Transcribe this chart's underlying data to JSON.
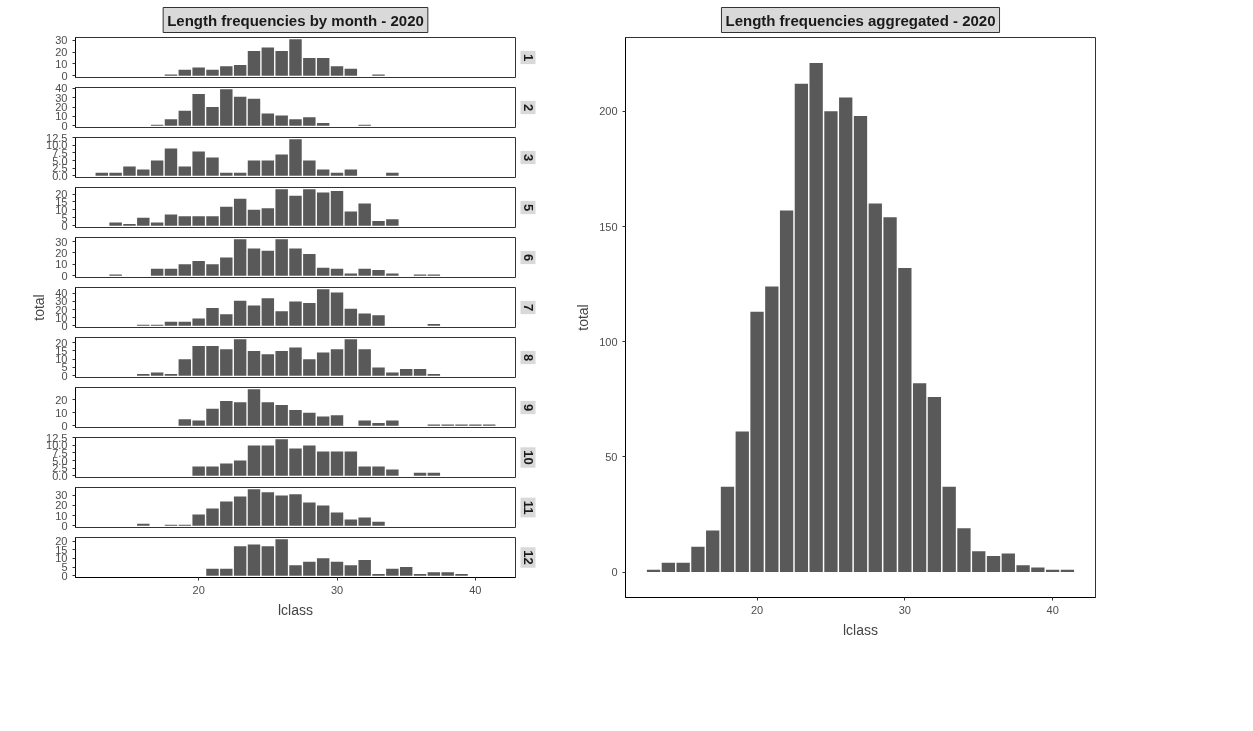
{
  "chart_data": [
    {
      "type": "bar",
      "annotations": [
        "Length frequencies by month - 2020"
      ],
      "title": "1",
      "color": "#595959",
      "tick_labels": "y",
      "xlim": [
        11.1,
        42.9
      ],
      "ylim": [
        -1.55,
        32.55
      ],
      "yticks": [
        0,
        10,
        20,
        30
      ],
      "x": [
        18,
        19,
        20,
        21,
        22,
        23,
        24,
        25,
        26,
        27,
        28,
        29,
        30,
        31,
        33
      ],
      "values": [
        1,
        5,
        7,
        5,
        8,
        9,
        21,
        24,
        21,
        31,
        15,
        15,
        8,
        6,
        1
      ]
    },
    {
      "type": "bar",
      "title": "2",
      "color": "#595959",
      "tick_labels": "y",
      "xlim": [
        11.1,
        42.9
      ],
      "ylim": [
        -1.95,
        40.95
      ],
      "yticks": [
        0,
        10,
        20,
        30,
        40
      ],
      "x": [
        17,
        18,
        19,
        20,
        21,
        22,
        23,
        24,
        25,
        26,
        27,
        28,
        29,
        32
      ],
      "values": [
        1,
        7,
        16,
        34,
        20,
        39,
        31,
        29,
        13,
        11,
        7,
        9,
        3,
        1
      ]
    },
    {
      "type": "bar",
      "title": "3",
      "color": "#595959",
      "tick_labels": "y",
      "xlim": [
        11.1,
        42.9
      ],
      "ylim": [
        -0.6,
        12.6
      ],
      "yticks": [
        {
          "value": 0,
          "label": "0.0"
        },
        2.5,
        {
          "value": 5,
          "label": "5.0"
        },
        7.5,
        {
          "value": 10,
          "label": "10.0"
        },
        12.5
      ],
      "x": [
        13,
        14,
        15,
        16,
        17,
        18,
        19,
        20,
        21,
        22,
        23,
        24,
        25,
        26,
        27,
        28,
        29,
        30,
        31,
        34
      ],
      "values": [
        1,
        1,
        3,
        2,
        5,
        9,
        3,
        8,
        6,
        1,
        1,
        5,
        5,
        7,
        12,
        5,
        2,
        1,
        2,
        1
      ]
    },
    {
      "type": "bar",
      "title": "5",
      "color": "#595959",
      "tick_labels": "y",
      "xlim": [
        11.1,
        42.9
      ],
      "ylim": [
        -1.15,
        24.15
      ],
      "yticks": [
        0,
        5,
        10,
        15,
        20
      ],
      "x": [
        14,
        15,
        16,
        17,
        18,
        19,
        20,
        21,
        22,
        23,
        24,
        25,
        26,
        27,
        28,
        29,
        30,
        31,
        32,
        33,
        34
      ],
      "values": [
        2,
        1,
        5,
        2,
        7,
        6,
        6,
        6,
        12,
        17,
        10,
        11,
        23,
        19,
        23,
        21,
        22,
        9,
        14,
        3,
        4
      ]
    },
    {
      "type": "bar",
      "title": "6",
      "color": "#595959",
      "tick_labels": "y",
      "xlim": [
        11.1,
        42.9
      ],
      "ylim": [
        -1.6,
        33.6
      ],
      "yticks": [
        0,
        10,
        20,
        30
      ],
      "x": [
        14,
        17,
        18,
        19,
        20,
        21,
        22,
        23,
        24,
        25,
        26,
        27,
        28,
        29,
        30,
        31,
        32,
        33,
        34,
        36,
        37
      ],
      "values": [
        1,
        6,
        6,
        10,
        13,
        10,
        16,
        32,
        24,
        22,
        32,
        24,
        19,
        7,
        6,
        2,
        6,
        5,
        2,
        1,
        1
      ]
    },
    {
      "type": "bar",
      "title": "7",
      "ylabel": "total",
      "color": "#595959",
      "tick_labels": "y",
      "xlim": [
        11.1,
        42.9
      ],
      "ylim": [
        -2.25,
        47.25
      ],
      "yticks": [
        0,
        10,
        20,
        30,
        40
      ],
      "x": [
        16,
        17,
        18,
        19,
        20,
        21,
        22,
        23,
        24,
        25,
        26,
        27,
        28,
        29,
        30,
        31,
        32,
        33,
        37
      ],
      "values": [
        1,
        1,
        5,
        5,
        9,
        22,
        14,
        31,
        25,
        34,
        18,
        30,
        28,
        45,
        41,
        21,
        15,
        13,
        2
      ]
    },
    {
      "type": "bar",
      "title": "8",
      "color": "#595959",
      "tick_labels": "y",
      "xlim": [
        11.1,
        42.9
      ],
      "ylim": [
        -1.1,
        23.1
      ],
      "yticks": [
        0,
        5,
        10,
        15,
        20
      ],
      "x": [
        16,
        17,
        18,
        19,
        20,
        21,
        22,
        23,
        24,
        25,
        26,
        27,
        28,
        29,
        30,
        31,
        32,
        33,
        34,
        35,
        36,
        37
      ],
      "values": [
        1,
        2,
        1,
        10,
        18,
        18,
        16,
        22,
        15,
        13,
        15,
        17,
        10,
        14,
        16,
        22,
        16,
        5,
        2,
        4,
        4,
        1
      ]
    },
    {
      "type": "bar",
      "title": "9",
      "color": "#595959",
      "tick_labels": "y",
      "xlim": [
        11.1,
        42.9
      ],
      "ylim": [
        -1.4,
        29.4
      ],
      "yticks": [
        0,
        10,
        20
      ],
      "x": [
        19,
        20,
        21,
        22,
        23,
        24,
        25,
        26,
        27,
        28,
        29,
        30,
        32,
        33,
        34,
        37,
        38,
        39,
        40,
        41
      ],
      "values": [
        5,
        4,
        13,
        19,
        18,
        28,
        18,
        16,
        12,
        10,
        7,
        8,
        4,
        2,
        4,
        1,
        1,
        1,
        1,
        1
      ]
    },
    {
      "type": "bar",
      "title": "10",
      "color": "#595959",
      "tick_labels": "y",
      "xlim": [
        11.1,
        42.9
      ],
      "ylim": [
        -0.6,
        12.6
      ],
      "yticks": [
        {
          "value": 0,
          "label": "0.0"
        },
        2.5,
        {
          "value": 5,
          "label": "5.0"
        },
        7.5,
        {
          "value": 10,
          "label": "10.0"
        },
        12.5
      ],
      "x": [
        20,
        21,
        22,
        23,
        24,
        25,
        26,
        27,
        28,
        29,
        30,
        31,
        32,
        33,
        34,
        36,
        37
      ],
      "values": [
        3,
        3,
        4,
        5,
        10,
        10,
        12,
        9,
        10,
        8,
        8,
        8,
        3,
        3,
        2,
        1,
        1
      ]
    },
    {
      "type": "bar",
      "title": "11",
      "color": "#595959",
      "tick_labels": "y",
      "xlim": [
        11.1,
        42.9
      ],
      "ylim": [
        -1.8,
        37.8
      ],
      "yticks": [
        0,
        10,
        20,
        30
      ],
      "x": [
        16,
        18,
        19,
        20,
        21,
        22,
        23,
        24,
        25,
        26,
        27,
        28,
        29,
        30,
        31,
        32,
        33
      ],
      "values": [
        2,
        1,
        1,
        11,
        17,
        24,
        29,
        36,
        33,
        30,
        31,
        23,
        20,
        13,
        6,
        8,
        4
      ]
    },
    {
      "type": "bar",
      "title": "12",
      "xlabel": "lclass",
      "color": "#595959",
      "xlim": [
        11.1,
        42.9
      ],
      "xticks": [
        20,
        30,
        40
      ],
      "ylim": [
        -1.05,
        22.05
      ],
      "yticks": [
        0,
        5,
        10,
        15,
        20
      ],
      "x": [
        21,
        22,
        23,
        24,
        25,
        26,
        27,
        28,
        29,
        30,
        31,
        32,
        33,
        34,
        35,
        36,
        37,
        38,
        39
      ],
      "values": [
        4,
        4,
        17,
        18,
        17,
        21,
        6,
        8,
        10,
        8,
        6,
        9,
        1,
        4,
        5,
        1,
        2,
        2,
        1
      ]
    },
    {
      "type": "bar",
      "title": "Length frequencies aggregated - 2020",
      "xlabel": "lclass",
      "ylabel": "total",
      "color": "#595959",
      "xlim": [
        11.1,
        42.9
      ],
      "xticks": [
        20,
        30,
        40
      ],
      "ylim": [
        -11.05,
        232.05
      ],
      "yticks": [
        0,
        50,
        100,
        150,
        200
      ],
      "x": [
        13,
        14,
        15,
        16,
        17,
        18,
        19,
        20,
        21,
        22,
        23,
        24,
        25,
        26,
        27,
        28,
        29,
        30,
        31,
        32,
        33,
        34,
        35,
        36,
        37,
        38,
        39,
        40,
        41
      ],
      "values": [
        1,
        4,
        4,
        11,
        18,
        37,
        61,
        113,
        124,
        157,
        212,
        221,
        200,
        206,
        198,
        160,
        154,
        132,
        82,
        76,
        37,
        19,
        9,
        7,
        8,
        3,
        2,
        1,
        1
      ]
    }
  ]
}
